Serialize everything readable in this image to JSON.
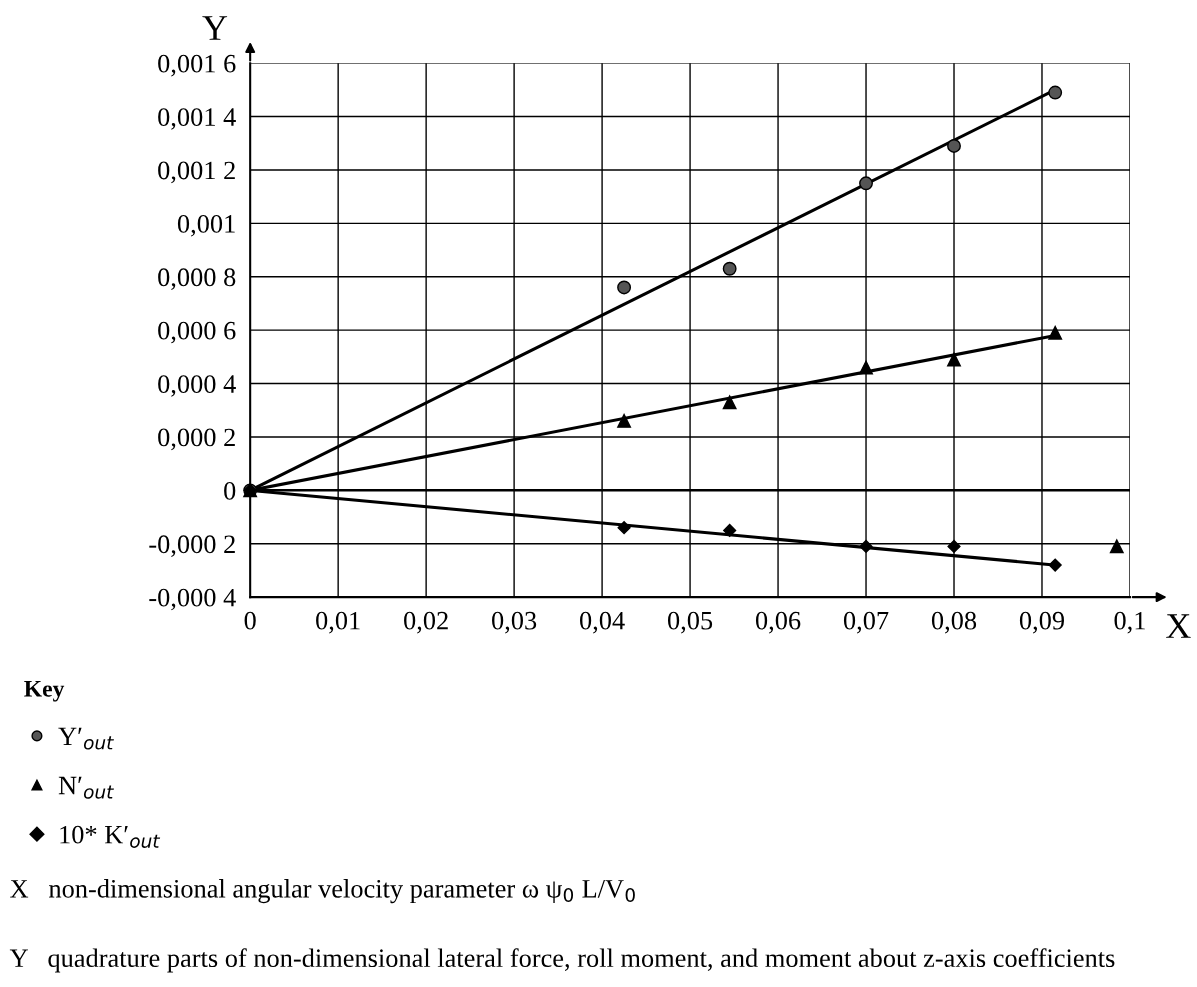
{
  "chart_data": {
    "type": "scatter",
    "xlabel": "X",
    "ylabel": "Y",
    "legend_title": "Key",
    "legend": "bottom left",
    "grid": true,
    "xlim": [
      0,
      0.1
    ],
    "ylim": [
      -0.0004,
      0.0016
    ],
    "xticks": [
      0,
      {
        "value": 0.01,
        "label": "0,01"
      },
      {
        "value": 0.02,
        "label": "0,02"
      },
      {
        "value": 0.03,
        "label": "0,03"
      },
      {
        "value": 0.04,
        "label": "0,04"
      },
      {
        "value": 0.05,
        "label": "0,05"
      },
      {
        "value": 0.06,
        "label": "0,06"
      },
      {
        "value": 0.07,
        "label": "0,07"
      },
      {
        "value": 0.08,
        "label": "0,08"
      },
      {
        "value": 0.09,
        "label": "0,09"
      },
      {
        "value": 0.1,
        "label": "0,1"
      }
    ],
    "yticks": [
      {
        "value": -0.0004,
        "label": "-0,000 4"
      },
      {
        "value": -0.0002,
        "label": "-0,000 2"
      },
      0,
      {
        "value": 0.0002,
        "label": "0,000 2"
      },
      {
        "value": 0.0004,
        "label": "0,000 4"
      },
      {
        "value": 0.0006,
        "label": "0,000 6"
      },
      {
        "value": 0.0008,
        "label": "0,000 8"
      },
      {
        "value": 0.001,
        "label": "0,001"
      },
      {
        "value": 0.0012,
        "label": "0,001 2"
      },
      {
        "value": 0.0014,
        "label": "0,001 4"
      },
      {
        "value": 0.0016,
        "label": "0,001 6"
      }
    ],
    "ref_lines": [
      {
        "axis": "y",
        "value": 0,
        "color": "#000000"
      }
    ],
    "series": [
      {
        "name": "Y′$_{out}$",
        "marker": "circle",
        "color": "#555555",
        "x": [
          0,
          0.0425,
          0.0545,
          0.07,
          0.08,
          0.0915
        ],
        "values": [
          0,
          0.00076,
          0.00083,
          0.00115,
          0.00129,
          0.00149
        ]
      },
      {
        "name": "N′$_{out}$",
        "marker": "triangle",
        "color": "#000000",
        "x": [
          0,
          0.0425,
          0.0545,
          0.07,
          0.08,
          0.0915,
          0.0985
        ],
        "values": [
          0,
          0.00026,
          0.00033,
          0.00046,
          0.00049,
          0.00059,
          -0.00021
        ]
      },
      {
        "name": "10* K′$_{out}$",
        "marker": "diamond",
        "color": "#000000",
        "x": [
          0,
          0.0425,
          0.0545,
          0.07,
          0.08,
          0.0915
        ],
        "values": [
          0,
          -0.00014,
          -0.00015,
          -0.00021,
          -0.00021,
          -0.00028
        ]
      },
      {
        "type": "line",
        "color": "#000000",
        "x": [
          0,
          0.0915
        ],
        "values": [
          0,
          0.0015
        ]
      },
      {
        "type": "line",
        "color": "#000000",
        "x": [
          0,
          0.0915
        ],
        "values": [
          0,
          0.00058
        ]
      },
      {
        "type": "line",
        "color": "#000000",
        "x": [
          0,
          0.0915
        ],
        "values": [
          0,
          -0.00028
        ]
      }
    ],
    "annotations": [
      "X   non-dimensional angular velocity parameter ω ψ$_{0}$ L/V$_{0}$",
      "Y   quadrature parts of non-dimensional lateral force, roll moment, and moment about z-axis coefficients"
    ]
  }
}
